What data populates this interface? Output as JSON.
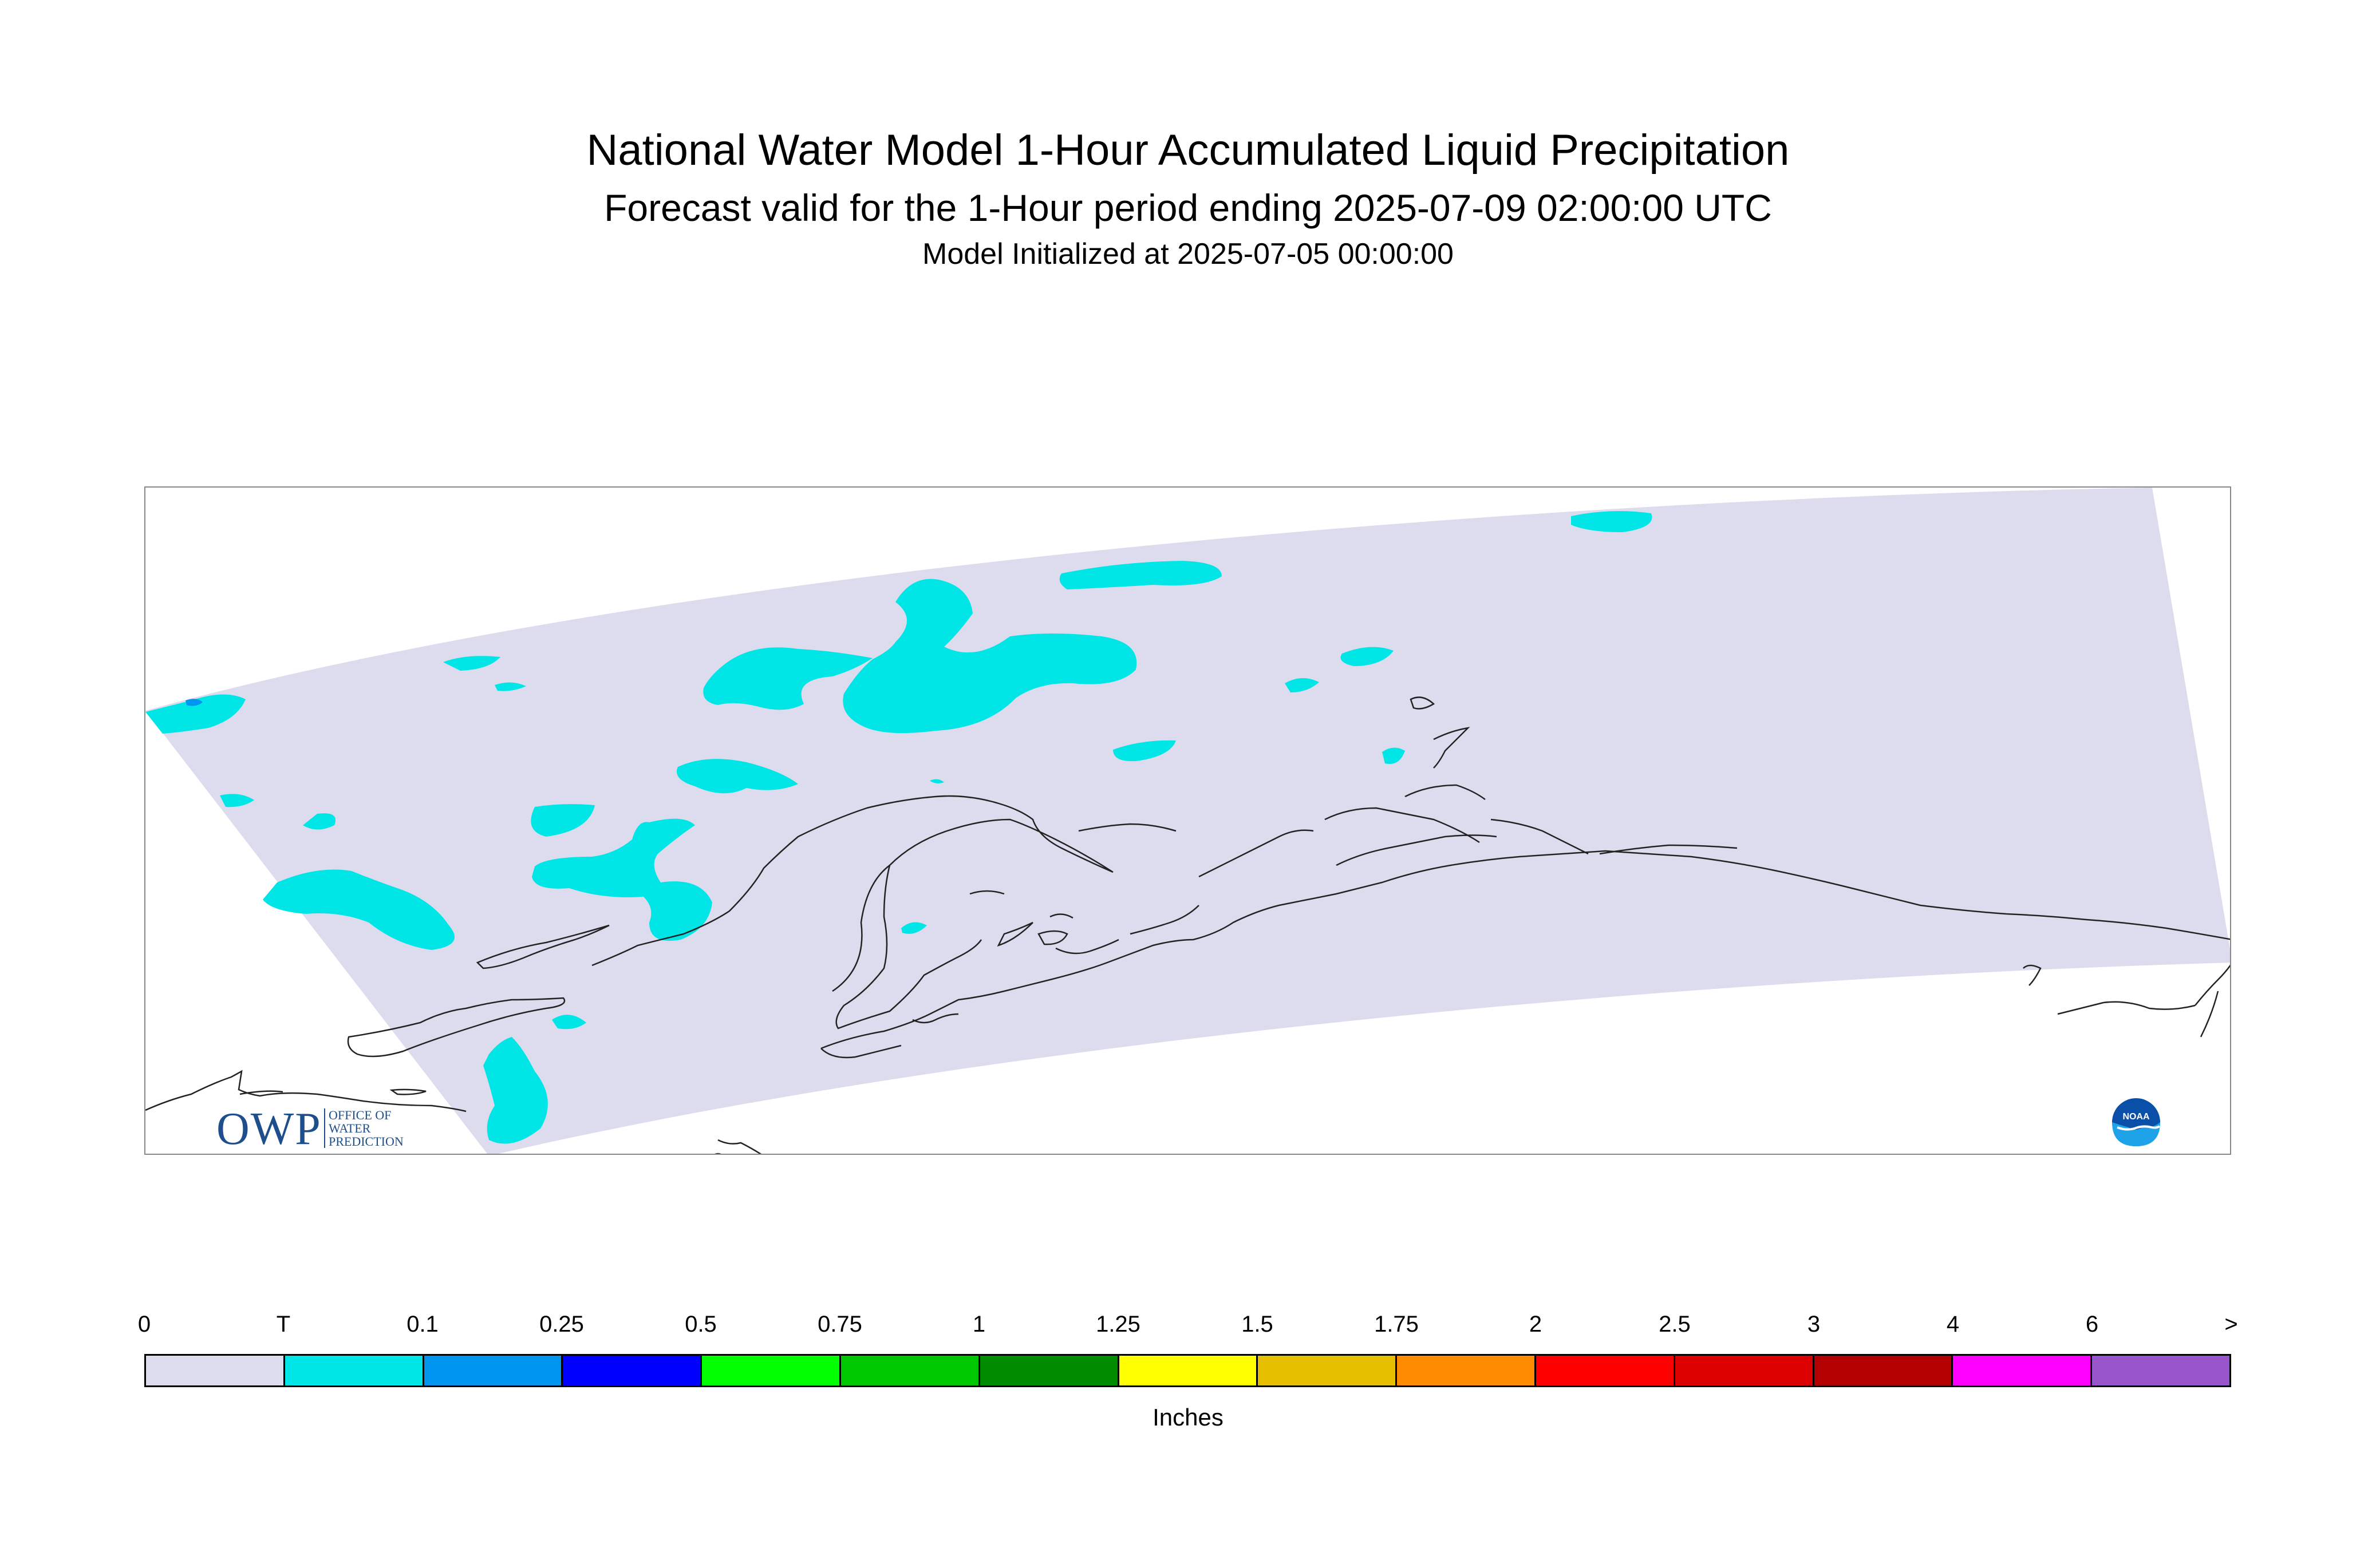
{
  "header": {
    "title": "National Water Model 1-Hour Accumulated Liquid Precipitation",
    "subtitle": "Forecast valid for the 1-Hour period ending 2025-07-09 02:00:00 UTC",
    "initialized": "Model Initialized at 2025-07-05 00:00:00"
  },
  "map": {
    "domain_fill_color": "#dcdcee",
    "precip_trace_color": "#00e6e6",
    "precip_light_color": "#0096f0",
    "coastline_color": "#222222"
  },
  "logos": {
    "owp": {
      "main": "OWP",
      "line1": "OFFICE OF",
      "line2": "WATER",
      "line3": "PREDICTION"
    },
    "noaa": {
      "text": "NOAA"
    }
  },
  "legend": {
    "ticks": [
      "0",
      "T",
      "0.1",
      "0.25",
      "0.5",
      "0.75",
      "1",
      "1.25",
      "1.5",
      "1.75",
      "2",
      "2.5",
      "3",
      "4",
      "6",
      ">"
    ],
    "colors": [
      "#dcdcee",
      "#00e6e6",
      "#0096f0",
      "#0000ff",
      "#00ff00",
      "#00c800",
      "#008c00",
      "#ffff00",
      "#e6be00",
      "#ff8c00",
      "#ff0000",
      "#dc0000",
      "#b40000",
      "#ff00ff",
      "#9955cc"
    ],
    "units": "Inches"
  }
}
